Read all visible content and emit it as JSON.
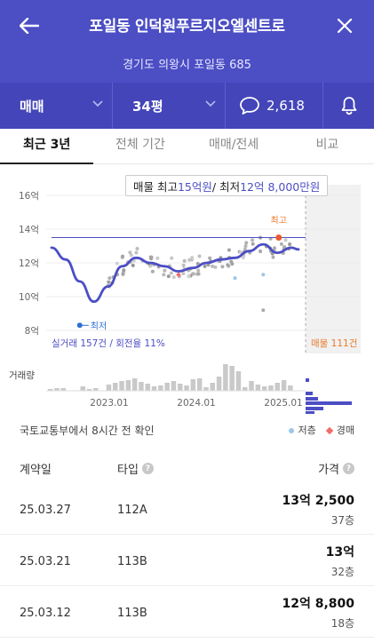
{
  "header": {
    "title": "포일동 인덕원푸르지오엘센트로",
    "address": "경기도 의왕시 포일동 685"
  },
  "filters": {
    "deal_type": "매매",
    "size": "34평",
    "comments": "2,618"
  },
  "tabs": [
    {
      "label": "최근 3년",
      "active": true
    },
    {
      "label": "전체 기간",
      "active": false
    },
    {
      "label": "매매/전세",
      "active": false
    },
    {
      "label": "비교",
      "active": false
    }
  ],
  "chart_tooltip": {
    "prefix": "매물 최고 ",
    "max_value": "15억원",
    "separator": " / 최저 ",
    "min_value": "12억 8,000만원"
  },
  "chart_data": {
    "type": "line",
    "y_ticks": [
      "16억",
      "14억",
      "12억",
      "10억",
      "8억"
    ],
    "ylim": [
      8,
      16
    ],
    "x_ticks": [
      "2023.01",
      "2024.01",
      "2025.01"
    ],
    "series": [
      {
        "x": [
          0,
          2,
          4,
          6,
          8,
          10,
          12,
          14,
          16,
          18,
          20,
          22,
          24,
          26,
          28,
          30,
          32,
          34,
          35
        ],
        "values": [
          12.9,
          12.2,
          10.9,
          9.7,
          10.6,
          11.8,
          12.3,
          12.0,
          11.8,
          11.5,
          11.7,
          12.0,
          12.2,
          12.3,
          12.7,
          13.1,
          12.6,
          12.9,
          12.8
        ]
      }
    ],
    "high_line_value": 13.5,
    "high_label": "최고",
    "low_label": "최저",
    "trade_count_label": "실거래 157건 / 회전율 11%",
    "listing_count_label": "매물 111건",
    "volume_label": "거래량"
  },
  "source": "국토교통부에서 8시간 전 확인",
  "legend": {
    "low_floor": "저층",
    "auction": "경매"
  },
  "table": {
    "headers": {
      "date": "계약일",
      "type": "타입",
      "price": "가격"
    },
    "rows": [
      {
        "date": "25.03.27",
        "type": "112A",
        "price": "13억 2,500",
        "floor": "37층"
      },
      {
        "date": "25.03.21",
        "type": "113B",
        "price": "13억",
        "floor": "32층"
      },
      {
        "date": "25.03.12",
        "type": "113B",
        "price": "12억 8,800",
        "floor": "18층"
      }
    ]
  },
  "colors": {
    "brand": "#4c4ec4",
    "accent_orange": "#ea7a2d",
    "low_floor_dot": "#9cc5ea",
    "auction_marker": "#f26b6b"
  }
}
